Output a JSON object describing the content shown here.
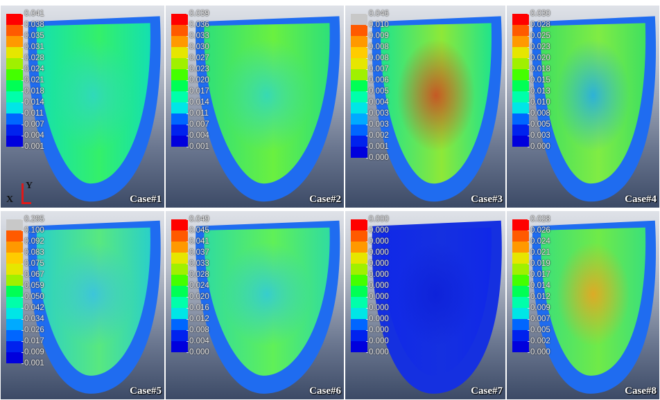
{
  "panels": [
    {
      "case_label": "Case#1",
      "legend": [
        "0.041",
        "0.038",
        "0.035",
        "0.031",
        "0.028",
        "0.024",
        "0.021",
        "0.018",
        "0.014",
        "0.011",
        "0.007",
        "0.004",
        "0.001"
      ],
      "max_swatch": "red"
    },
    {
      "case_label": "Case#2",
      "legend": [
        "0.039",
        "0.036",
        "0.033",
        "0.030",
        "0.027",
        "0.023",
        "0.020",
        "0.017",
        "0.014",
        "0.011",
        "0.007",
        "0.004",
        "0.001"
      ],
      "max_swatch": "red"
    },
    {
      "case_label": "Case#3",
      "legend": [
        "0.046",
        "0.010",
        "0.009",
        "0.008",
        "0.008",
        "0.007",
        "0.006",
        "0.005",
        "0.004",
        "0.003",
        "0.003",
        "0.002",
        "0.001",
        "0.000"
      ],
      "max_swatch": "gray"
    },
    {
      "case_label": "Case#4",
      "legend": [
        "0.030",
        "0.028",
        "0.025",
        "0.023",
        "0.020",
        "0.018",
        "0.015",
        "0.013",
        "0.010",
        "0.008",
        "0.005",
        "0.003",
        "0.000"
      ],
      "max_swatch": "red"
    },
    {
      "case_label": "Case#5",
      "legend": [
        "0.295",
        "0.100",
        "0.092",
        "0.083",
        "0.075",
        "0.067",
        "0.059",
        "0.050",
        "0.042",
        "0.034",
        "0.026",
        "0.017",
        "0.009",
        "0.001"
      ],
      "max_swatch": "gray"
    },
    {
      "case_label": "Case#6",
      "legend": [
        "0.049",
        "0.045",
        "0.041",
        "0.037",
        "0.033",
        "0.028",
        "0.024",
        "0.020",
        "0.016",
        "0.012",
        "0.008",
        "0.004",
        "0.000"
      ],
      "max_swatch": "red"
    },
    {
      "case_label": "Case#7",
      "legend": [
        "0.000",
        "0.000",
        "0.000",
        "0.000",
        "0.000",
        "0.000",
        "0.000",
        "0.000",
        "0.000",
        "0.000",
        "0.000",
        "0.000",
        "0.000"
      ],
      "max_swatch": "red"
    },
    {
      "case_label": "Case#8",
      "legend": [
        "0.028",
        "0.026",
        "0.024",
        "0.021",
        "0.019",
        "0.017",
        "0.014",
        "0.012",
        "0.009",
        "0.007",
        "0.005",
        "0.002",
        "0.000"
      ],
      "max_swatch": "red"
    }
  ],
  "triad": {
    "x_label": "X",
    "y_label": "Y"
  },
  "colormap": [
    "#ff0000",
    "#ff5a00",
    "#ff9900",
    "#ffcc00",
    "#e6e600",
    "#a0f000",
    "#44ff00",
    "#00ff55",
    "#00ffaa",
    "#00e6e6",
    "#00aaff",
    "#0066ff",
    "#0022ee",
    "#0000dd"
  ],
  "colors": {
    "overflow_gray": "#c8c8c8",
    "surface_blue": "#1530e0"
  }
}
